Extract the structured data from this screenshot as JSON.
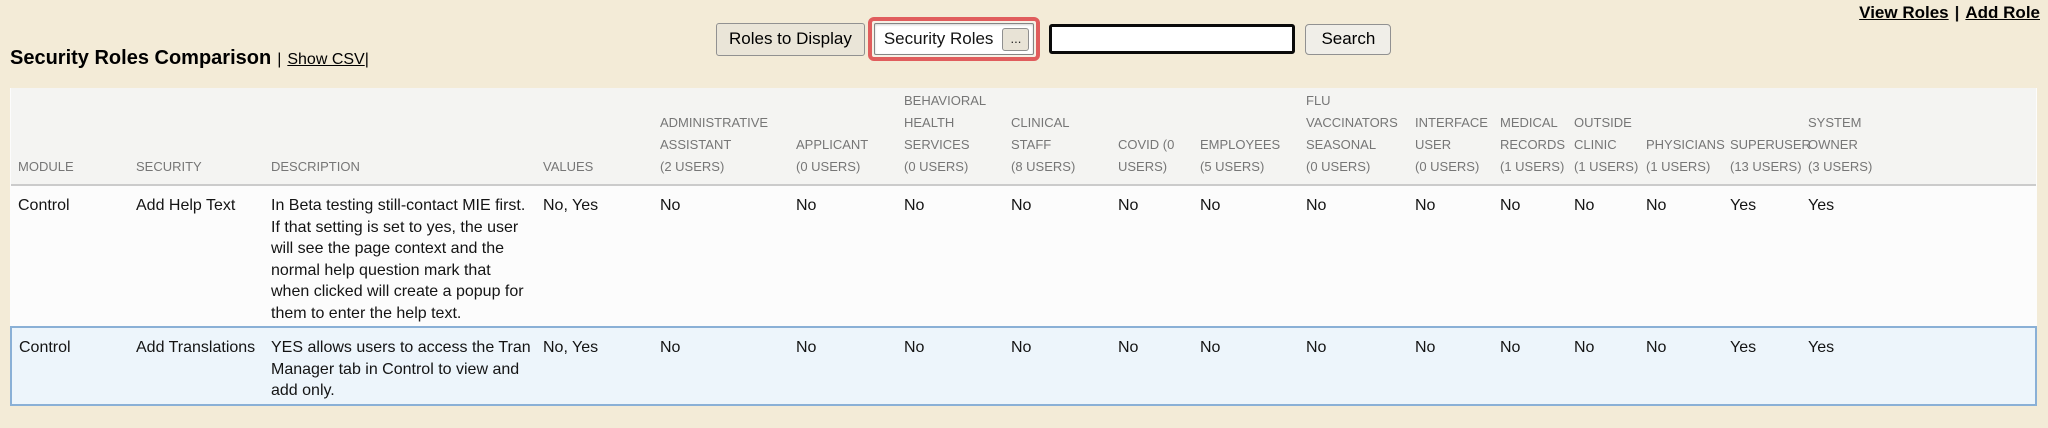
{
  "colors": {
    "page_bg": "#f3ebd7",
    "highlight_ring": "#e05d5d",
    "row_highlight_bg": "#edf5fb",
    "row_highlight_border": "#8ab0d6",
    "table_header_bg": "#f4f4f2",
    "table_bg": "#fcfcfc"
  },
  "toolbar": {
    "roles_to_display_label": "Roles to Display",
    "roles_filter": {
      "value": "Security Roles",
      "expand_label": "..."
    },
    "search": {
      "value": "",
      "button_label": "Search"
    }
  },
  "nav_links": {
    "view_roles": "View Roles",
    "separator": "|",
    "add_role": "Add Role"
  },
  "page_header": {
    "title": "Security Roles Comparison",
    "separator": "|",
    "show_csv": "Show CSV",
    "trailing_separator": "|"
  },
  "table": {
    "fixed_columns": [
      "MODULE",
      "SECURITY",
      "DESCRIPTION",
      "VALUES"
    ],
    "role_columns": [
      {
        "name": "ADMINISTRATIVE ASSISTANT",
        "users": "(2 USERS)"
      },
      {
        "name": "APPLICANT",
        "users": "(0 USERS)"
      },
      {
        "name": "BEHAVIORAL HEALTH SERVICES",
        "users": "(0 USERS)"
      },
      {
        "name": "CLINICAL STAFF",
        "users": "(8 USERS)"
      },
      {
        "name": "COVID",
        "users": "(0 USERS)"
      },
      {
        "name": "EMPLOYEES",
        "users": "(5 USERS)"
      },
      {
        "name": "FLU VACCINATORS SEASONAL",
        "users": "(0 USERS)"
      },
      {
        "name": "INTERFACE USER",
        "users": "(0 USERS)"
      },
      {
        "name": "MEDICAL RECORDS",
        "users": "(1 USERS)"
      },
      {
        "name": "OUTSIDE CLINIC",
        "users": "(1 USERS)"
      },
      {
        "name": "PHYSICIANS",
        "users": "(1 USERS)"
      },
      {
        "name": "SUPERUSER",
        "users": "(13 USERS)"
      },
      {
        "name": "SYSTEM OWNER",
        "users": "(3 USERS)"
      }
    ],
    "rows": [
      {
        "module": "Control",
        "security": "Add Help Text",
        "description": "In Beta testing still-contact MIE first. If that setting is set to yes, the user will see the page context and the normal help question mark that when clicked will create a popup for them to enter the help text.",
        "values": "No, Yes",
        "role_values": [
          "No",
          "No",
          "No",
          "No",
          "No",
          "No",
          "No",
          "No",
          "No",
          "No",
          "No",
          "Yes",
          "Yes"
        ],
        "highlighted": false
      },
      {
        "module": "Control",
        "security": "Add Translations",
        "description": "YES allows users to access the Tran Manager tab in Control to view and add only.",
        "values": "No, Yes",
        "role_values": [
          "No",
          "No",
          "No",
          "No",
          "No",
          "No",
          "No",
          "No",
          "No",
          "No",
          "No",
          "Yes",
          "Yes"
        ],
        "highlighted": true
      }
    ]
  }
}
